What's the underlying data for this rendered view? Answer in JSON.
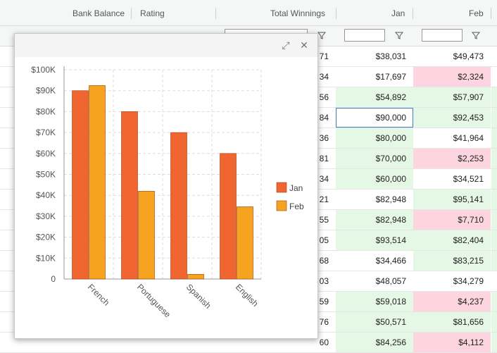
{
  "header": {
    "columns": [
      "Bank Balance",
      "Rating",
      "Total Winnings",
      "Jan",
      "Feb"
    ]
  },
  "rows": [
    {
      "total_tail": "71",
      "jan": "$38,031",
      "feb": "$49,473",
      "jan_state": "none",
      "feb_state": "none"
    },
    {
      "total_tail": "34",
      "jan": "$17,697",
      "feb": "$2,324",
      "jan_state": "none",
      "feb_state": "neg"
    },
    {
      "total_tail": "56",
      "jan": "$54,892",
      "feb": "$57,907",
      "jan_state": "pos",
      "feb_state": "pos"
    },
    {
      "total_tail": "84",
      "jan": "$90,000",
      "feb": "$92,453",
      "jan_state": "sel",
      "feb_state": "pos"
    },
    {
      "total_tail": "36",
      "jan": "$80,000",
      "feb": "$41,964",
      "jan_state": "pos",
      "feb_state": "none"
    },
    {
      "total_tail": "81",
      "jan": "$70,000",
      "feb": "$2,253",
      "jan_state": "pos",
      "feb_state": "neg"
    },
    {
      "total_tail": "34",
      "jan": "$60,000",
      "feb": "$34,521",
      "jan_state": "pos",
      "feb_state": "none"
    },
    {
      "total_tail": "21",
      "jan": "$82,948",
      "feb": "$95,141",
      "jan_state": "none",
      "feb_state": "pos"
    },
    {
      "total_tail": "55",
      "jan": "$82,948",
      "feb": "$7,710",
      "jan_state": "pos",
      "feb_state": "neg"
    },
    {
      "total_tail": "05",
      "jan": "$93,514",
      "feb": "$82,404",
      "jan_state": "pos",
      "feb_state": "pos"
    },
    {
      "total_tail": "68",
      "jan": "$34,466",
      "feb": "$83,215",
      "jan_state": "none",
      "feb_state": "pos"
    },
    {
      "total_tail": "03",
      "jan": "$48,057",
      "feb": "$34,279",
      "jan_state": "none",
      "feb_state": "none"
    },
    {
      "total_tail": "59",
      "jan": "$59,018",
      "feb": "$4,237",
      "jan_state": "pos",
      "feb_state": "neg"
    },
    {
      "total_tail": "76",
      "jan": "$50,571",
      "feb": "$81,656",
      "jan_state": "pos",
      "feb_state": "pos"
    },
    {
      "total_tail": "60",
      "jan": "$84,256",
      "feb": "$4,112",
      "jan_state": "pos",
      "feb_state": "neg"
    }
  ],
  "dialog": {
    "expand_icon": "expand-icon",
    "close_icon": "close-icon"
  },
  "chart_data": {
    "type": "bar",
    "categories": [
      "French",
      "Portuguese",
      "Spanish",
      "English"
    ],
    "series": [
      {
        "name": "Jan",
        "values": [
          90000,
          80000,
          70000,
          60000
        ],
        "color": "#f06530"
      },
      {
        "name": "Feb",
        "values": [
          92453,
          41964,
          2253,
          34521
        ],
        "color": "#f6a31f"
      }
    ],
    "y_ticks": [
      "0",
      "$10K",
      "$20K",
      "$30K",
      "$40K",
      "$50K",
      "$60K",
      "$70K",
      "$80K",
      "$90K",
      "$100K"
    ],
    "ylim": [
      0,
      100000
    ],
    "grid": true,
    "legend": "right"
  }
}
